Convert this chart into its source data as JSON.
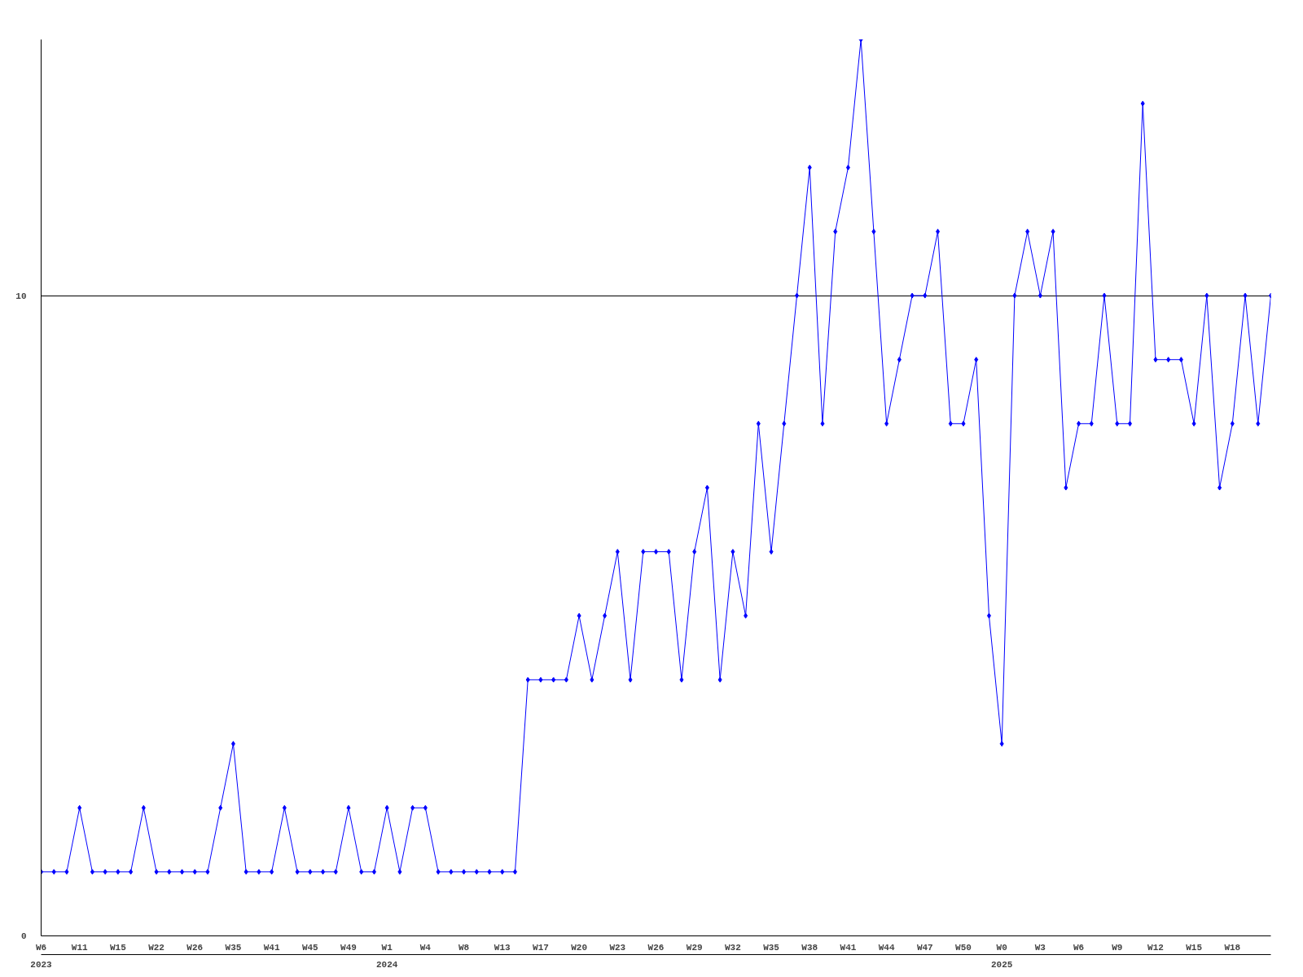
{
  "chart_data": {
    "type": "line",
    "categories": [
      "W6\n2023",
      null,
      null,
      "W11",
      null,
      null,
      "W15",
      null,
      null,
      "W22",
      null,
      null,
      "W26",
      null,
      null,
      "W35",
      null,
      null,
      "W41",
      null,
      null,
      "W45",
      null,
      null,
      "W49",
      null,
      null,
      "W1\n2024",
      null,
      null,
      "W4",
      null,
      null,
      "W8",
      null,
      null,
      "W13",
      null,
      null,
      "W17",
      null,
      null,
      "W20",
      null,
      null,
      "W23",
      null,
      null,
      "W26",
      null,
      null,
      "W29",
      null,
      null,
      "W32",
      null,
      null,
      "W35",
      null,
      null,
      "W38",
      null,
      null,
      "W41",
      null,
      null,
      "W44",
      null,
      null,
      "W47",
      null,
      null,
      "W50",
      null,
      null,
      "W0\n2025",
      null,
      null,
      "W3",
      null,
      null,
      "W6",
      null,
      null,
      "W9",
      null,
      null,
      "W12",
      null,
      null,
      "W15",
      null,
      null,
      "W18",
      null,
      null,
      null
    ],
    "series": [
      {
        "color": "#0000ff",
        "values": [
          1,
          1,
          1,
          2,
          1,
          1,
          1,
          1,
          2,
          1,
          1,
          1,
          1,
          1,
          2,
          3,
          1,
          1,
          1,
          2,
          1,
          1,
          1,
          1,
          2,
          1,
          1,
          2,
          1,
          2,
          2,
          1,
          1,
          1,
          1,
          1,
          1,
          1,
          4,
          4,
          4,
          4,
          5,
          4,
          5,
          6,
          4,
          6,
          6,
          6,
          4,
          6,
          7,
          4,
          6,
          5,
          8,
          6,
          8,
          10,
          12,
          8,
          11,
          12,
          14,
          11,
          8,
          9,
          10,
          10,
          11,
          8,
          8,
          9,
          5,
          3,
          10,
          11,
          10,
          11,
          7,
          8,
          8,
          10,
          8,
          8,
          13,
          9,
          9,
          9,
          8,
          10,
          7,
          8,
          10,
          8,
          10
        ]
      }
    ],
    "ylim": [
      0,
      14
    ],
    "yticks": [
      0,
      10
    ],
    "grid": "y",
    "marker": "diamond",
    "line_style": "solid"
  }
}
